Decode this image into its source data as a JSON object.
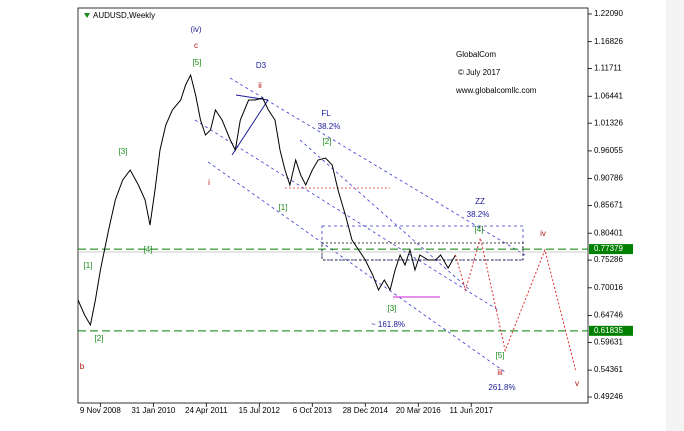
{
  "chart_data": {
    "type": "line",
    "title": "AUDUSD,Weekly",
    "x": [
      -27,
      -19,
      -12,
      -6,
      0,
      10,
      18,
      27,
      36,
      46,
      54,
      60,
      66,
      72,
      79,
      87,
      97,
      103,
      109,
      115,
      121,
      127,
      133,
      139,
      147,
      157,
      163,
      169,
      179,
      187,
      196,
      203,
      211,
      217,
      223,
      229,
      236,
      242,
      248,
      256,
      263,
      272,
      280,
      287,
      296,
      304,
      312,
      320,
      329,
      336,
      343,
      350,
      356,
      362,
      368,
      374,
      380,
      386,
      396,
      405,
      411,
      420,
      429
    ],
    "values": [
      0.677,
      0.6484,
      0.6294,
      0.677,
      0.734,
      0.8101,
      0.8672,
      0.9052,
      0.9242,
      0.8957,
      0.8672,
      0.8196,
      0.8862,
      0.9622,
      1.0098,
      1.0383,
      1.0573,
      1.0859,
      1.1049,
      1.0668,
      1.0193,
      0.9908,
      1.0003,
      1.0383,
      1.0193,
      0.9813,
      0.9622,
      1.0193,
      1.0573,
      1.0573,
      1.0611,
      1.0383,
      1.0193,
      0.9622,
      0.9242,
      0.8957,
      0.9432,
      0.9147,
      0.8957,
      0.9242,
      0.9432,
      0.947,
      0.9337,
      0.8862,
      0.8386,
      0.7911,
      0.7721,
      0.753,
      0.7245,
      0.696,
      0.715,
      0.696,
      0.734,
      0.7625,
      0.7435,
      0.7721,
      0.734,
      0.7625,
      0.753,
      0.753,
      0.7625,
      0.7378,
      0.7625
    ],
    "color": "#000000",
    "projection": {
      "x": [
        429,
        441,
        459,
        489,
        537,
        574
      ],
      "values": [
        0.7625,
        0.696,
        0.7949,
        0.5809,
        0.7721,
        0.5439
      ],
      "color": "#e03030"
    },
    "levels": [
      {
        "value": 0.77379,
        "color": "#008000"
      },
      {
        "value": 0.61835,
        "color": "#008000"
      }
    ],
    "xlim": [
      -27,
      589
    ],
    "ylim": [
      0.4811,
      1.2323
    ],
    "xticks": [
      {
        "value": 0,
        "label": "9 Nov 2008"
      },
      {
        "value": 64,
        "label": "31 Jan 2010"
      },
      {
        "value": 128,
        "label": "24 Apr 2011"
      },
      {
        "value": 192,
        "label": "15 Jul 2012"
      },
      {
        "value": 256,
        "label": "6 Oct 2013"
      },
      {
        "value": 320,
        "label": "28 Dec 2014"
      },
      {
        "value": 384,
        "label": "20 Mar 2016"
      },
      {
        "value": 448,
        "label": "11 Jun 2017"
      }
    ],
    "yticks": [
      {
        "value": 1.2209,
        "label": "1.22090"
      },
      1.16826,
      1.11711,
      1.06441,
      1.01326,
      0.96055,
      0.90786,
      0.85671,
      0.80401,
      0.75286,
      0.70016,
      0.64746,
      0.59631,
      0.54361,
      0.49246
    ],
    "annotations": [
      {
        "text": "(iv)",
        "color": "#1a1a9a"
      },
      {
        "text": "c",
        "color": "#b01010"
      },
      {
        "text": "[5]",
        "color": "#1a8a1a"
      },
      {
        "text": "D3",
        "color": "#1a1a9a"
      },
      {
        "text": "ii",
        "color": "#b01010"
      },
      {
        "text": "FL",
        "color": "#1a1a9a"
      },
      {
        "text": "38.2%",
        "color": "#1a1a9a"
      },
      {
        "text": "[2]",
        "color": "#1a8a1a"
      },
      {
        "text": "[3]",
        "color": "#1a8a1a"
      },
      {
        "text": "i",
        "color": "#b01010"
      },
      {
        "text": "[1]",
        "color": "#1a8a1a"
      },
      {
        "text": "ZZ",
        "color": "#1a1a9a"
      },
      {
        "text": "38.2%",
        "color": "#1a1a9a"
      },
      {
        "text": "[4]",
        "color": "#1a8a1a"
      },
      {
        "text": "iv",
        "color": "#b01010"
      },
      {
        "text": "[4]",
        "color": "#1a8a1a"
      },
      {
        "text": "[1]",
        "color": "#1a8a1a"
      },
      {
        "text": "[2]",
        "color": "#1a8a1a"
      },
      {
        "text": "[3]",
        "color": "#1a8a1a"
      },
      {
        "text": "~ 161.8%",
        "color": "#1a1a9a"
      },
      {
        "text": "[5]",
        "color": "#1a8a1a"
      },
      {
        "text": "iii",
        "color": "#b01010"
      },
      {
        "text": "261.8%",
        "color": "#1a1a9a"
      },
      {
        "text": "v",
        "color": "#b01010"
      },
      {
        "text": "b",
        "color": "#b01010"
      },
      {
        "text": "GlobalCom",
        "color": "#000000"
      },
      {
        "text": "© July 2017",
        "color": "#000000"
      },
      {
        "text": "www.globalcomllc.com",
        "color": "#000000"
      }
    ]
  }
}
